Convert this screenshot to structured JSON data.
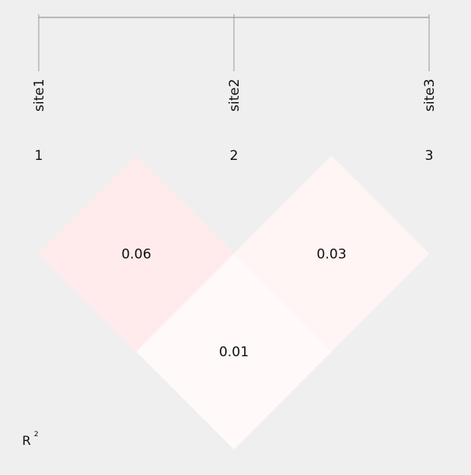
{
  "chart_data": {
    "type": "heatmap",
    "title": "",
    "sites": [
      "site1",
      "site2",
      "site3"
    ],
    "indices": [
      "1",
      "2",
      "3"
    ],
    "pairs": [
      {
        "a": 0,
        "b": 1,
        "value": 0.06,
        "label": "0.06",
        "color": "#ffebeb"
      },
      {
        "a": 1,
        "b": 2,
        "value": 0.03,
        "label": "0.03",
        "color": "#fff5f5"
      },
      {
        "a": 0,
        "b": 2,
        "value": 0.01,
        "label": "0.01",
        "color": "#fff9f9"
      }
    ],
    "metric": {
      "base": "R",
      "superscript": "2"
    }
  },
  "colors": {
    "background": "#efefef",
    "axis_line": "#999999",
    "text": "#111111"
  }
}
